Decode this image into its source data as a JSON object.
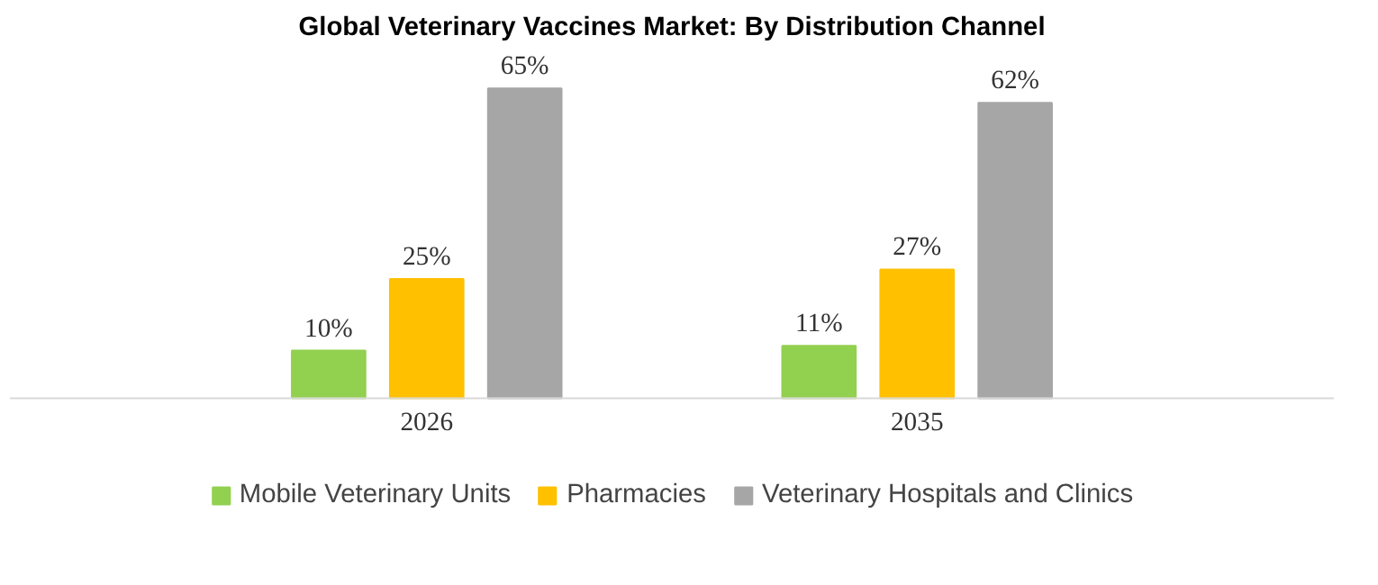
{
  "chart_data": {
    "type": "bar",
    "title": "Global Veterinary Vaccines Market: By Distribution Channel",
    "categories": [
      "2026",
      "2035"
    ],
    "series": [
      {
        "name": "Mobile Veterinary Units",
        "color": "#92d050",
        "values": [
          10,
          11
        ],
        "value_labels": [
          "10%",
          "11%"
        ]
      },
      {
        "name": "Pharmacies",
        "color": "#ffc000",
        "values": [
          25,
          27
        ],
        "value_labels": [
          "25%",
          "27%"
        ]
      },
      {
        "name": "Veterinary Hospitals and Clinics",
        "color": "#a6a6a6",
        "values": [
          65,
          62
        ],
        "value_labels": [
          "65%",
          "62%"
        ]
      }
    ],
    "legend": "bottom"
  }
}
